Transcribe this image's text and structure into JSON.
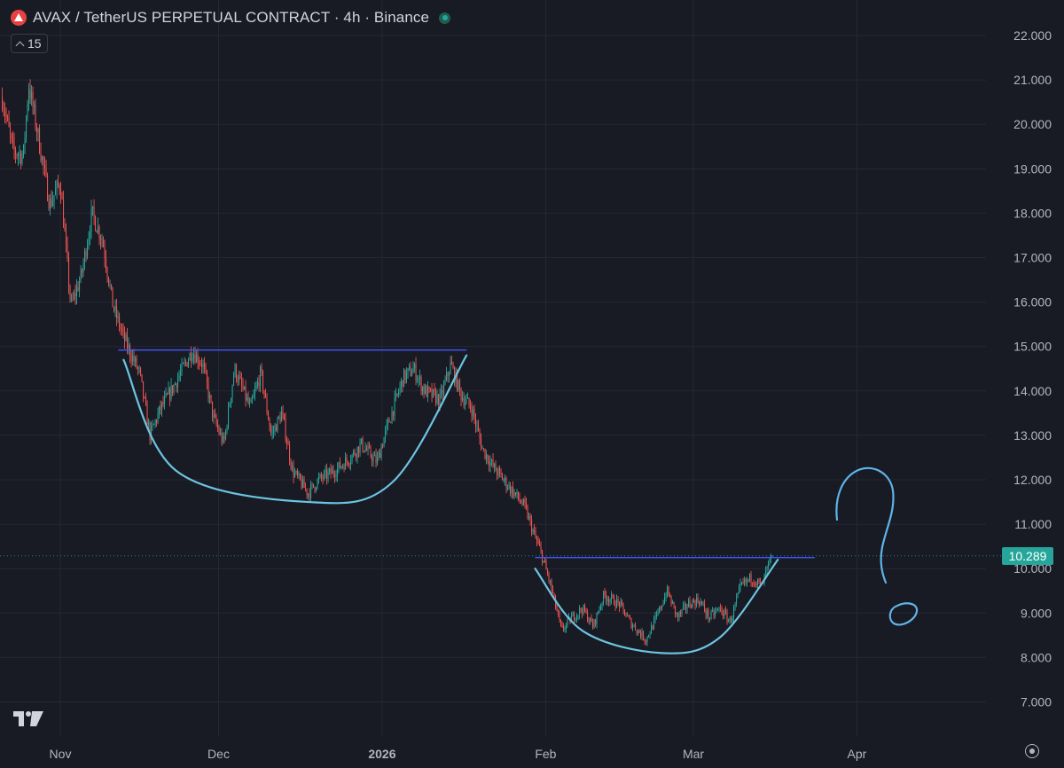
{
  "header": {
    "symbol_icon": "avax-logo-icon",
    "title": "AVAX / TetherUS PERPETUAL CONTRACT · 4h · Binance",
    "status": "market-open-dot"
  },
  "interval_badge": {
    "label": "15",
    "icon": "chevron-up-icon"
  },
  "last_price": {
    "label": "10.289",
    "color": "#26a69a"
  },
  "colors": {
    "background": "#181a24",
    "grid": "#252834",
    "up": "#26a69a",
    "down": "#ef5350",
    "resistance": "#3d5afe",
    "pattern": "#6cc4e0",
    "annotation": "#5fb4e8"
  },
  "chart_data": {
    "type": "candlestick",
    "title": "AVAX / TetherUS PERPETUAL CONTRACT · 4h · Binance",
    "ylim": [
      6.5,
      22.4
    ],
    "y_ticks": [
      "22.000",
      "21.000",
      "20.000",
      "19.000",
      "18.000",
      "17.000",
      "16.000",
      "15.000",
      "14.000",
      "13.000",
      "12.000",
      "11.000",
      "10.000",
      "9.000",
      "8.000",
      "7.000"
    ],
    "x_ticks": [
      {
        "label": "Nov",
        "date": "2025-11-01"
      },
      {
        "label": "Dec",
        "date": "2025-12-01"
      },
      {
        "label": "2026",
        "date": "2026-01-01"
      },
      {
        "label": "Feb",
        "date": "2026-02-01"
      },
      {
        "label": "Mar",
        "date": "2026-03-01"
      },
      {
        "label": "Apr",
        "date": "2026-04-01"
      }
    ],
    "last_price": 10.289,
    "price_path": [
      [
        "2025-10-21",
        20.6
      ],
      [
        "2025-10-23",
        19.4
      ],
      [
        "2025-10-25",
        19.3
      ],
      [
        "2025-10-26",
        20.9
      ],
      [
        "2025-10-28",
        19.6
      ],
      [
        "2025-10-30",
        18.2
      ],
      [
        "2025-11-01",
        18.7
      ],
      [
        "2025-11-03",
        15.9
      ],
      [
        "2025-11-05",
        16.6
      ],
      [
        "2025-11-07",
        18.0
      ],
      [
        "2025-11-09",
        17.4
      ],
      [
        "2025-11-11",
        15.9
      ],
      [
        "2025-11-13",
        15.2
      ],
      [
        "2025-11-16",
        14.4
      ],
      [
        "2025-11-18",
        13.0
      ],
      [
        "2025-11-20",
        13.6
      ],
      [
        "2025-11-22",
        14.0
      ],
      [
        "2025-11-26",
        14.9
      ],
      [
        "2025-11-28",
        14.6
      ],
      [
        "2025-11-30",
        13.4
      ],
      [
        "2025-12-02",
        12.8
      ],
      [
        "2025-12-04",
        14.5
      ],
      [
        "2025-12-07",
        13.6
      ],
      [
        "2025-12-09",
        14.4
      ],
      [
        "2025-12-11",
        13.0
      ],
      [
        "2025-12-13",
        13.5
      ],
      [
        "2025-12-15",
        12.2
      ],
      [
        "2025-12-18",
        11.7
      ],
      [
        "2025-12-20",
        12.0
      ],
      [
        "2025-12-23",
        12.2
      ],
      [
        "2025-12-26",
        12.5
      ],
      [
        "2025-12-28",
        12.8
      ],
      [
        "2025-12-31",
        12.4
      ],
      [
        "2026-01-02",
        13.2
      ],
      [
        "2026-01-05",
        14.3
      ],
      [
        "2026-01-07",
        14.5
      ],
      [
        "2026-01-09",
        14.0
      ],
      [
        "2026-01-12",
        13.8
      ],
      [
        "2026-01-14",
        14.6
      ],
      [
        "2026-01-16",
        13.9
      ],
      [
        "2026-01-18",
        13.6
      ],
      [
        "2026-01-20",
        12.7
      ],
      [
        "2026-01-22",
        12.3
      ],
      [
        "2026-01-24",
        12.0
      ],
      [
        "2026-01-26",
        11.7
      ],
      [
        "2026-01-28",
        11.4
      ],
      [
        "2026-01-30",
        10.7
      ],
      [
        "2026-01-31",
        10.4
      ],
      [
        "2026-02-02",
        9.6
      ],
      [
        "2026-02-04",
        8.6
      ],
      [
        "2026-02-06",
        8.9
      ],
      [
        "2026-02-08",
        9.1
      ],
      [
        "2026-02-10",
        8.7
      ],
      [
        "2026-02-12",
        9.4
      ],
      [
        "2026-02-15",
        9.2
      ],
      [
        "2026-02-17",
        8.8
      ],
      [
        "2026-02-20",
        8.4
      ],
      [
        "2026-02-22",
        8.9
      ],
      [
        "2026-02-24",
        9.5
      ],
      [
        "2026-02-26",
        8.9
      ],
      [
        "2026-02-28",
        9.2
      ],
      [
        "2026-03-02",
        9.3
      ],
      [
        "2026-03-04",
        8.9
      ],
      [
        "2026-03-06",
        9.1
      ],
      [
        "2026-03-08",
        8.8
      ],
      [
        "2026-03-10",
        9.6
      ],
      [
        "2026-03-12",
        9.8
      ],
      [
        "2026-03-14",
        9.6
      ],
      [
        "2026-03-15",
        10.0
      ],
      [
        "2026-03-16",
        10.3
      ]
    ],
    "drawings": {
      "resistance_lines": [
        {
          "from": [
            "2025-11-12",
            14.92
          ],
          "to": [
            "2026-01-17",
            14.92
          ],
          "color": "#3d5afe"
        },
        {
          "from": [
            "2026-01-30",
            10.25
          ],
          "to": [
            "2026-03-24",
            10.25
          ],
          "color": "#3d5afe"
        }
      ],
      "cup_curves": [
        {
          "points": [
            [
              "2025-11-13",
              14.7
            ],
            [
              "2025-11-23",
              12.2
            ],
            [
              "2025-12-18",
              11.5
            ],
            [
              "2026-01-03",
              11.95
            ],
            [
              "2026-01-17",
              14.8
            ]
          ],
          "color": "#6cc4e0"
        },
        {
          "points": [
            [
              "2026-01-30",
              10.0
            ],
            [
              "2026-02-08",
              8.6
            ],
            [
              "2026-02-23",
              8.1
            ],
            [
              "2026-03-06",
              8.45
            ],
            [
              "2026-03-17",
              10.2
            ]
          ],
          "color": "#6cc4e0"
        }
      ],
      "annotation": "question-mark-drawing"
    }
  },
  "footer": {
    "logo": "tradingview-logo-icon",
    "settings": "gear-icon"
  }
}
